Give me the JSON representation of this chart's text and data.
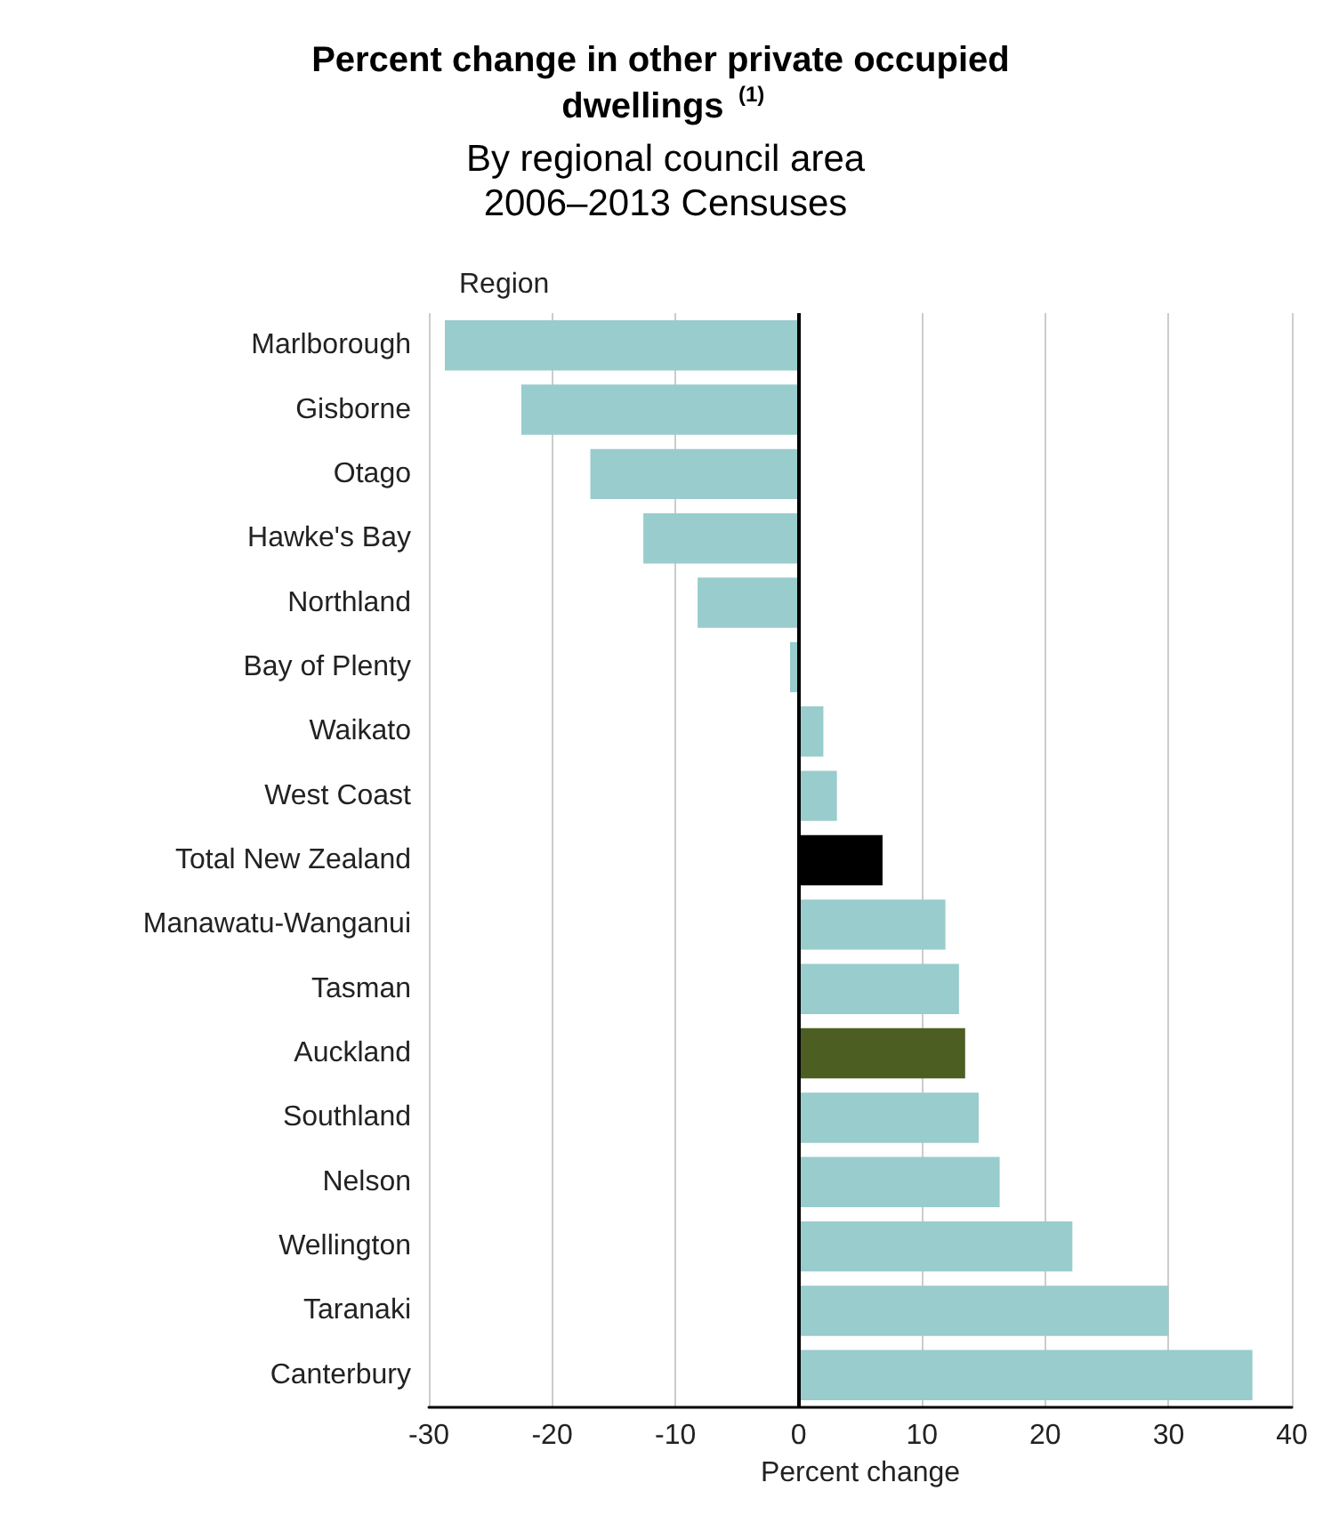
{
  "chart_data": {
    "type": "bar",
    "orientation": "horizontal",
    "title": "Percent change in other private occupied dwellings $^{(1)}$",
    "subtitle": "By regional council area\n2006–2013 Censuses",
    "ylabel": "Region",
    "xlabel": "Percent change",
    "categories": [
      "Marlborough",
      "Gisborne",
      "Otago",
      "Hawke's Bay",
      "Northland",
      "Bay of Plenty",
      "Waikato",
      "West Coast",
      "Total New Zealand",
      "Manawatu-Wanganui",
      "Tasman",
      "Auckland",
      "Southland",
      "Nelson",
      "Wellington",
      "Taranaki",
      "Canterbury"
    ],
    "values": [
      -28.7,
      -22.5,
      -16.9,
      -12.6,
      -8.2,
      -0.7,
      2.0,
      3.1,
      6.8,
      11.9,
      13.0,
      13.5,
      14.6,
      16.3,
      22.2,
      30.0,
      36.8
    ],
    "colors": [
      "#99cccc",
      "#99cccc",
      "#99cccc",
      "#99cccc",
      "#99cccc",
      "#99cccc",
      "#99cccc",
      "#99cccc",
      "#000000",
      "#99cccc",
      "#99cccc",
      "#4d5e23",
      "#99cccc",
      "#99cccc",
      "#99cccc",
      "#99cccc",
      "#99cccc"
    ],
    "xlim": [
      -30,
      40
    ],
    "xticks": [
      -30,
      -20,
      -10,
      0,
      10,
      20,
      30,
      40
    ],
    "grid": "x"
  }
}
